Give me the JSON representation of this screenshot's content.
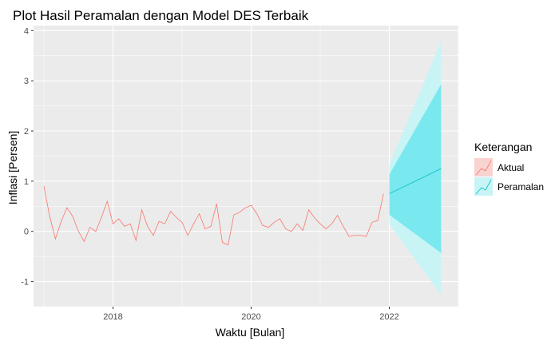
{
  "chart_data": {
    "type": "line",
    "title": "Plot Hasil Peramalan dengan Model DES Terbaik",
    "xlabel": "Waktu [Bulan]",
    "ylabel": "Inflasi [Persen]",
    "xlim": [
      2016.85,
      2023.0
    ],
    "ylim": [
      -1.5,
      4.1
    ],
    "x_ticks": [
      2018,
      2020,
      2022
    ],
    "x_tick_labels": [
      "2018",
      "2020",
      "2022"
    ],
    "y_ticks": [
      -1,
      0,
      1,
      2,
      3,
      4
    ],
    "y_tick_labels": [
      "-1",
      "0",
      "1",
      "2",
      "3",
      "4"
    ],
    "grid": true,
    "legend": {
      "title": "Keterangan",
      "position": "right",
      "entries": [
        "Aktual",
        "Peramalan"
      ]
    },
    "colors": {
      "aktual": "#f8766d",
      "peramalan": "#00bfc4",
      "band80": "#7ae8ef",
      "band95": "#c8f4f6",
      "panel": "#ebebeb"
    },
    "series": [
      {
        "name": "Aktual",
        "x_start": 2017.0,
        "x_step": 0.083333,
        "values": [
          0.9,
          0.3,
          -0.15,
          0.2,
          0.47,
          0.3,
          0.0,
          -0.2,
          0.08,
          0.0,
          0.28,
          0.6,
          0.15,
          0.25,
          0.1,
          0.15,
          -0.18,
          0.43,
          0.1,
          -0.08,
          0.2,
          0.15,
          0.4,
          0.28,
          0.18,
          -0.08,
          0.15,
          0.35,
          0.05,
          0.1,
          0.55,
          -0.22,
          -0.27,
          0.33,
          0.38,
          0.47,
          0.52,
          0.35,
          0.12,
          0.08,
          0.18,
          0.25,
          0.05,
          0.0,
          0.15,
          0.02,
          0.43,
          0.27,
          0.15,
          0.05,
          0.15,
          0.32,
          0.1,
          -0.1,
          -0.08,
          -0.08,
          -0.1,
          0.18,
          0.22,
          0.75
        ]
      },
      {
        "name": "Peramalan",
        "x": [
          2022.0,
          2022.75
        ],
        "values": [
          0.75,
          1.25
        ],
        "lo80": [
          0.33,
          -0.43
        ],
        "hi80": [
          1.13,
          2.93
        ],
        "lo95": [
          0.15,
          -1.27
        ],
        "hi95": [
          1.33,
          3.78
        ]
      }
    ]
  }
}
